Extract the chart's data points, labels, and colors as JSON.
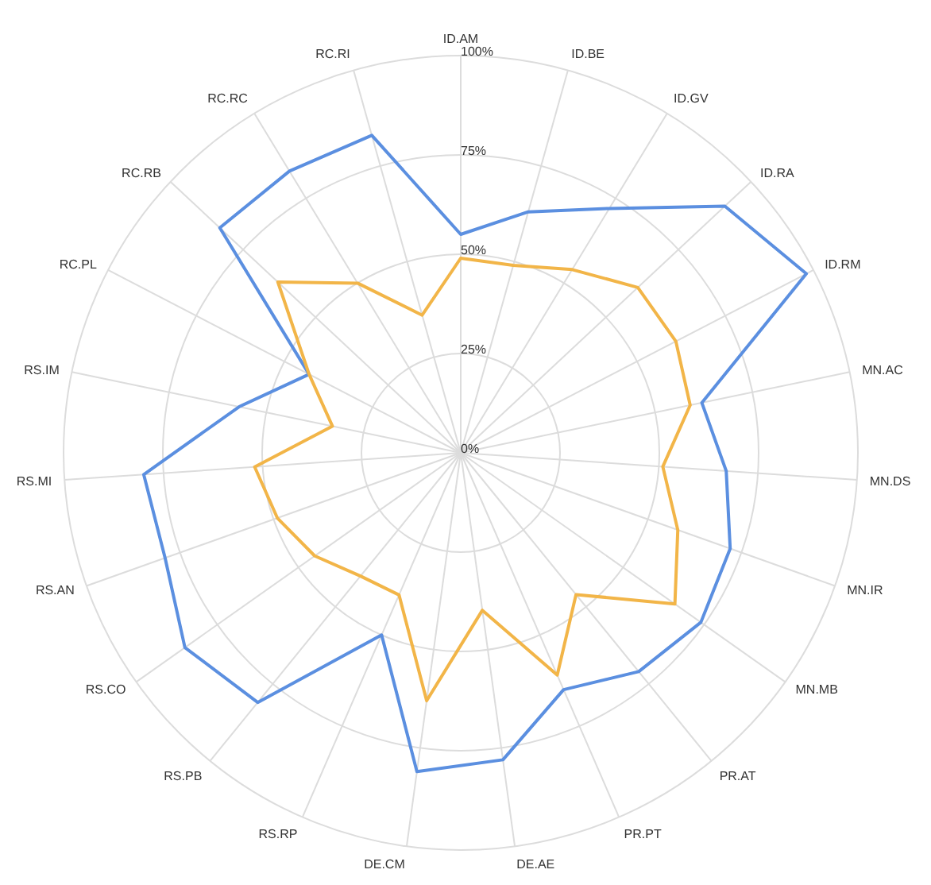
{
  "chart_data": {
    "type": "radar",
    "categories": [
      "ID.AM",
      "ID.BE",
      "ID.GV",
      "ID.RA",
      "ID.RM",
      "MN.AC",
      "MN.DS",
      "MN.IR",
      "MN.MB",
      "PR.AT",
      "PR.PT",
      "DE.AE",
      "DE.CM",
      "RS.RP",
      "RS.PB",
      "RS.CO",
      "RS.AN",
      "RS.MI",
      "RS.IM",
      "RC.PL",
      "RC.RB",
      "RC.RC",
      "RC.RI"
    ],
    "series": [
      {
        "color": "#5b8fe0",
        "values": [
          55,
          63,
          72,
          91,
          98,
          62,
          67,
          72,
          74,
          71,
          65,
          78,
          81,
          50,
          81,
          85,
          79,
          80,
          57,
          43,
          83,
          83,
          83
        ]
      },
      {
        "color": "#f2b548",
        "values": [
          49,
          49,
          54,
          61,
          61,
          59,
          51,
          58,
          66,
          46,
          61,
          40,
          63,
          39,
          40,
          45,
          49,
          52,
          33,
          43,
          63,
          50,
          36
        ]
      }
    ],
    "ylim": [
      0,
      100
    ],
    "yticks": [
      {
        "value": 0,
        "label": "0%"
      },
      {
        "value": 25,
        "label": "25%"
      },
      {
        "value": 50,
        "label": "50%"
      },
      {
        "value": 75,
        "label": "75%"
      },
      {
        "value": 100,
        "label": "100%"
      }
    ],
    "grid": true,
    "legend": false,
    "marker": "none",
    "line_style": "solid"
  }
}
